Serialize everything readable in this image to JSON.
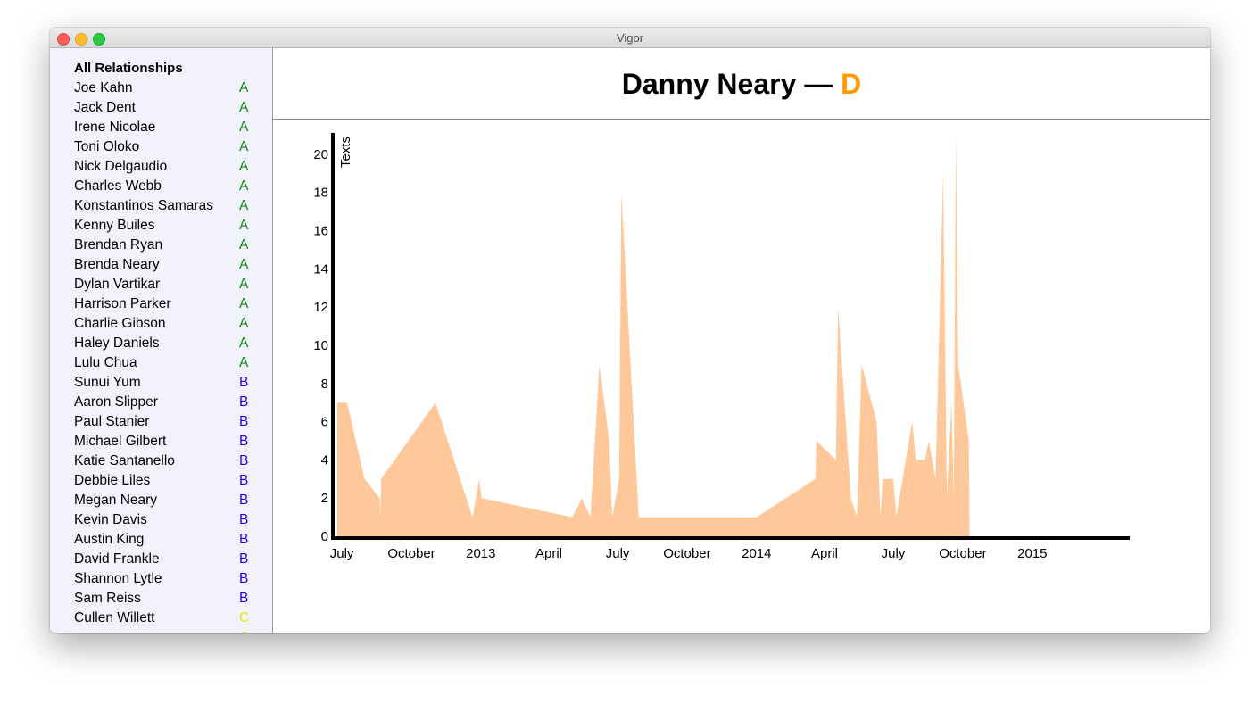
{
  "window": {
    "title": "Vigor"
  },
  "sidebar": {
    "heading": "All Relationships",
    "grade_colors": {
      "A": "#118a11",
      "B": "#2200ee",
      "C": "#e6e600"
    },
    "items": [
      {
        "name": "Joe Kahn",
        "grade": "A"
      },
      {
        "name": "Jack Dent",
        "grade": "A"
      },
      {
        "name": "Irene Nicolae",
        "grade": "A"
      },
      {
        "name": "Toni Oloko",
        "grade": "A"
      },
      {
        "name": "Nick Delgaudio",
        "grade": "A"
      },
      {
        "name": "Charles Webb",
        "grade": "A"
      },
      {
        "name": "Konstantinos Samaras",
        "grade": "A"
      },
      {
        "name": "Kenny Builes",
        "grade": "A"
      },
      {
        "name": "Brendan Ryan",
        "grade": "A"
      },
      {
        "name": "Brenda Neary",
        "grade": "A"
      },
      {
        "name": "Dylan Vartikar",
        "grade": "A"
      },
      {
        "name": "Harrison Parker",
        "grade": "A"
      },
      {
        "name": "Charlie Gibson",
        "grade": "A"
      },
      {
        "name": "Haley Daniels",
        "grade": "A"
      },
      {
        "name": "Lulu Chua",
        "grade": "A"
      },
      {
        "name": "Sunui Yum",
        "grade": "B"
      },
      {
        "name": "Aaron Slipper",
        "grade": "B"
      },
      {
        "name": "Paul Stanier",
        "grade": "B"
      },
      {
        "name": "Michael Gilbert",
        "grade": "B"
      },
      {
        "name": "Katie Santanello",
        "grade": "B"
      },
      {
        "name": "Debbie Liles",
        "grade": "B"
      },
      {
        "name": "Megan Neary",
        "grade": "B"
      },
      {
        "name": "Kevin Davis",
        "grade": "B"
      },
      {
        "name": "Austin King",
        "grade": "B"
      },
      {
        "name": "David Frankle",
        "grade": "B"
      },
      {
        "name": "Shannon Lytle",
        "grade": "B"
      },
      {
        "name": "Sam Reiss",
        "grade": "B"
      },
      {
        "name": "Cullen Willett",
        "grade": "C"
      },
      {
        "name": "",
        "grade": "C"
      }
    ]
  },
  "header": {
    "name": "Danny Neary",
    "dash": "—",
    "grade": "D",
    "grade_color": "#ff9a00"
  },
  "chart_data": {
    "type": "area",
    "ylabel": "Texts",
    "xlabel": "",
    "ylim": [
      0,
      21
    ],
    "xlim": [
      "2012-06-25",
      "2015-05-10"
    ],
    "yticks": [
      0,
      2,
      4,
      6,
      8,
      10,
      12,
      14,
      16,
      18,
      20
    ],
    "xticks": [
      {
        "date": "2012-07-01",
        "label": "July"
      },
      {
        "date": "2012-10-01",
        "label": "October"
      },
      {
        "date": "2013-01-01",
        "label": "2013"
      },
      {
        "date": "2013-04-01",
        "label": "April"
      },
      {
        "date": "2013-07-01",
        "label": "July"
      },
      {
        "date": "2013-10-01",
        "label": "October"
      },
      {
        "date": "2014-01-01",
        "label": "2014"
      },
      {
        "date": "2014-04-01",
        "label": "April"
      },
      {
        "date": "2014-07-01",
        "label": "July"
      },
      {
        "date": "2014-10-01",
        "label": "October"
      },
      {
        "date": "2015-01-01",
        "label": "2015"
      }
    ],
    "fill_color": "#fec89a",
    "grid": false,
    "points": [
      [
        "2012-06-25",
        7
      ],
      [
        "2012-07-08",
        7
      ],
      [
        "2012-07-31",
        3
      ],
      [
        "2012-08-20",
        2
      ],
      [
        "2012-08-21",
        1
      ],
      [
        "2012-08-22",
        3
      ],
      [
        "2012-11-02",
        7
      ],
      [
        "2012-12-21",
        1
      ],
      [
        "2012-12-30",
        3
      ],
      [
        "2013-01-02",
        2
      ],
      [
        "2013-05-02",
        1
      ],
      [
        "2013-05-15",
        2
      ],
      [
        "2013-05-26",
        1
      ],
      [
        "2013-06-07",
        9
      ],
      [
        "2013-06-20",
        5
      ],
      [
        "2013-06-24",
        1
      ],
      [
        "2013-07-03",
        3
      ],
      [
        "2013-07-06",
        18
      ],
      [
        "2013-07-29",
        1
      ],
      [
        "2014-01-01",
        1
      ],
      [
        "2014-03-20",
        3
      ],
      [
        "2014-03-21",
        5
      ],
      [
        "2014-04-16",
        4
      ],
      [
        "2014-04-19",
        12
      ],
      [
        "2014-05-06",
        2
      ],
      [
        "2014-05-14",
        1
      ],
      [
        "2014-05-20",
        9
      ],
      [
        "2014-06-09",
        6
      ],
      [
        "2014-06-14",
        1
      ],
      [
        "2014-06-17",
        3
      ],
      [
        "2014-07-01",
        3
      ],
      [
        "2014-07-05",
        1
      ],
      [
        "2014-07-26",
        6
      ],
      [
        "2014-07-31",
        4
      ],
      [
        "2014-08-12",
        4
      ],
      [
        "2014-08-17",
        5
      ],
      [
        "2014-08-26",
        3
      ],
      [
        "2014-09-05",
        19
      ],
      [
        "2014-09-10",
        2
      ],
      [
        "2014-09-16",
        7
      ],
      [
        "2014-09-19",
        2
      ],
      [
        "2014-09-22",
        21
      ],
      [
        "2014-09-25",
        9
      ],
      [
        "2014-10-09",
        5
      ],
      [
        "2014-10-10",
        0
      ]
    ]
  }
}
